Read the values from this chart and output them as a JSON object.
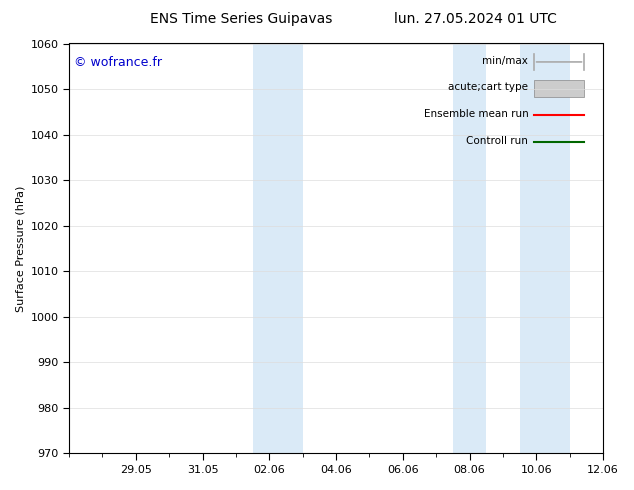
{
  "title_left": "ENS Time Series Guipavas",
  "title_right": "lun. 27.05.2024 01 UTC",
  "ylabel": "Surface Pressure (hPa)",
  "ylim": [
    970,
    1060
  ],
  "yticks": [
    970,
    980,
    990,
    1000,
    1010,
    1020,
    1030,
    1040,
    1050,
    1060
  ],
  "xtick_labels": [
    "29.05",
    "31.05",
    "02.06",
    "04.06",
    "06.06",
    "08.06",
    "10.06",
    "12.06"
  ],
  "xtick_days": [
    2,
    4,
    6,
    8,
    10,
    12,
    14,
    16
  ],
  "xlim": [
    0,
    16
  ],
  "watermark": "© wofrance.fr",
  "watermark_color": "#0000cc",
  "background_color": "#ffffff",
  "plot_bg_color": "#ffffff",
  "shaded_bands": [
    {
      "x_start": 5.5,
      "x_end": 7.0,
      "color": "#daeaf7"
    },
    {
      "x_start": 11.5,
      "x_end": 12.5,
      "color": "#daeaf7"
    },
    {
      "x_start": 13.5,
      "x_end": 15.0,
      "color": "#daeaf7"
    }
  ],
  "legend_entries": [
    {
      "label": "min/max",
      "color": "#aaaaaa",
      "style": "errorbar"
    },
    {
      "label": "acute;cart type",
      "color": "#cccccc",
      "style": "rect"
    },
    {
      "label": "Ensemble mean run",
      "color": "#ff0000",
      "style": "line"
    },
    {
      "label": "Controll run",
      "color": "#006600",
      "style": "line"
    }
  ],
  "font_size_title": 10,
  "font_size_axis": 8,
  "font_size_tick": 8,
  "font_size_legend": 7.5,
  "font_size_watermark": 9,
  "grid_color": "#dddddd",
  "tick_color": "#000000",
  "border_color": "#000000",
  "minor_tick_count": 1
}
